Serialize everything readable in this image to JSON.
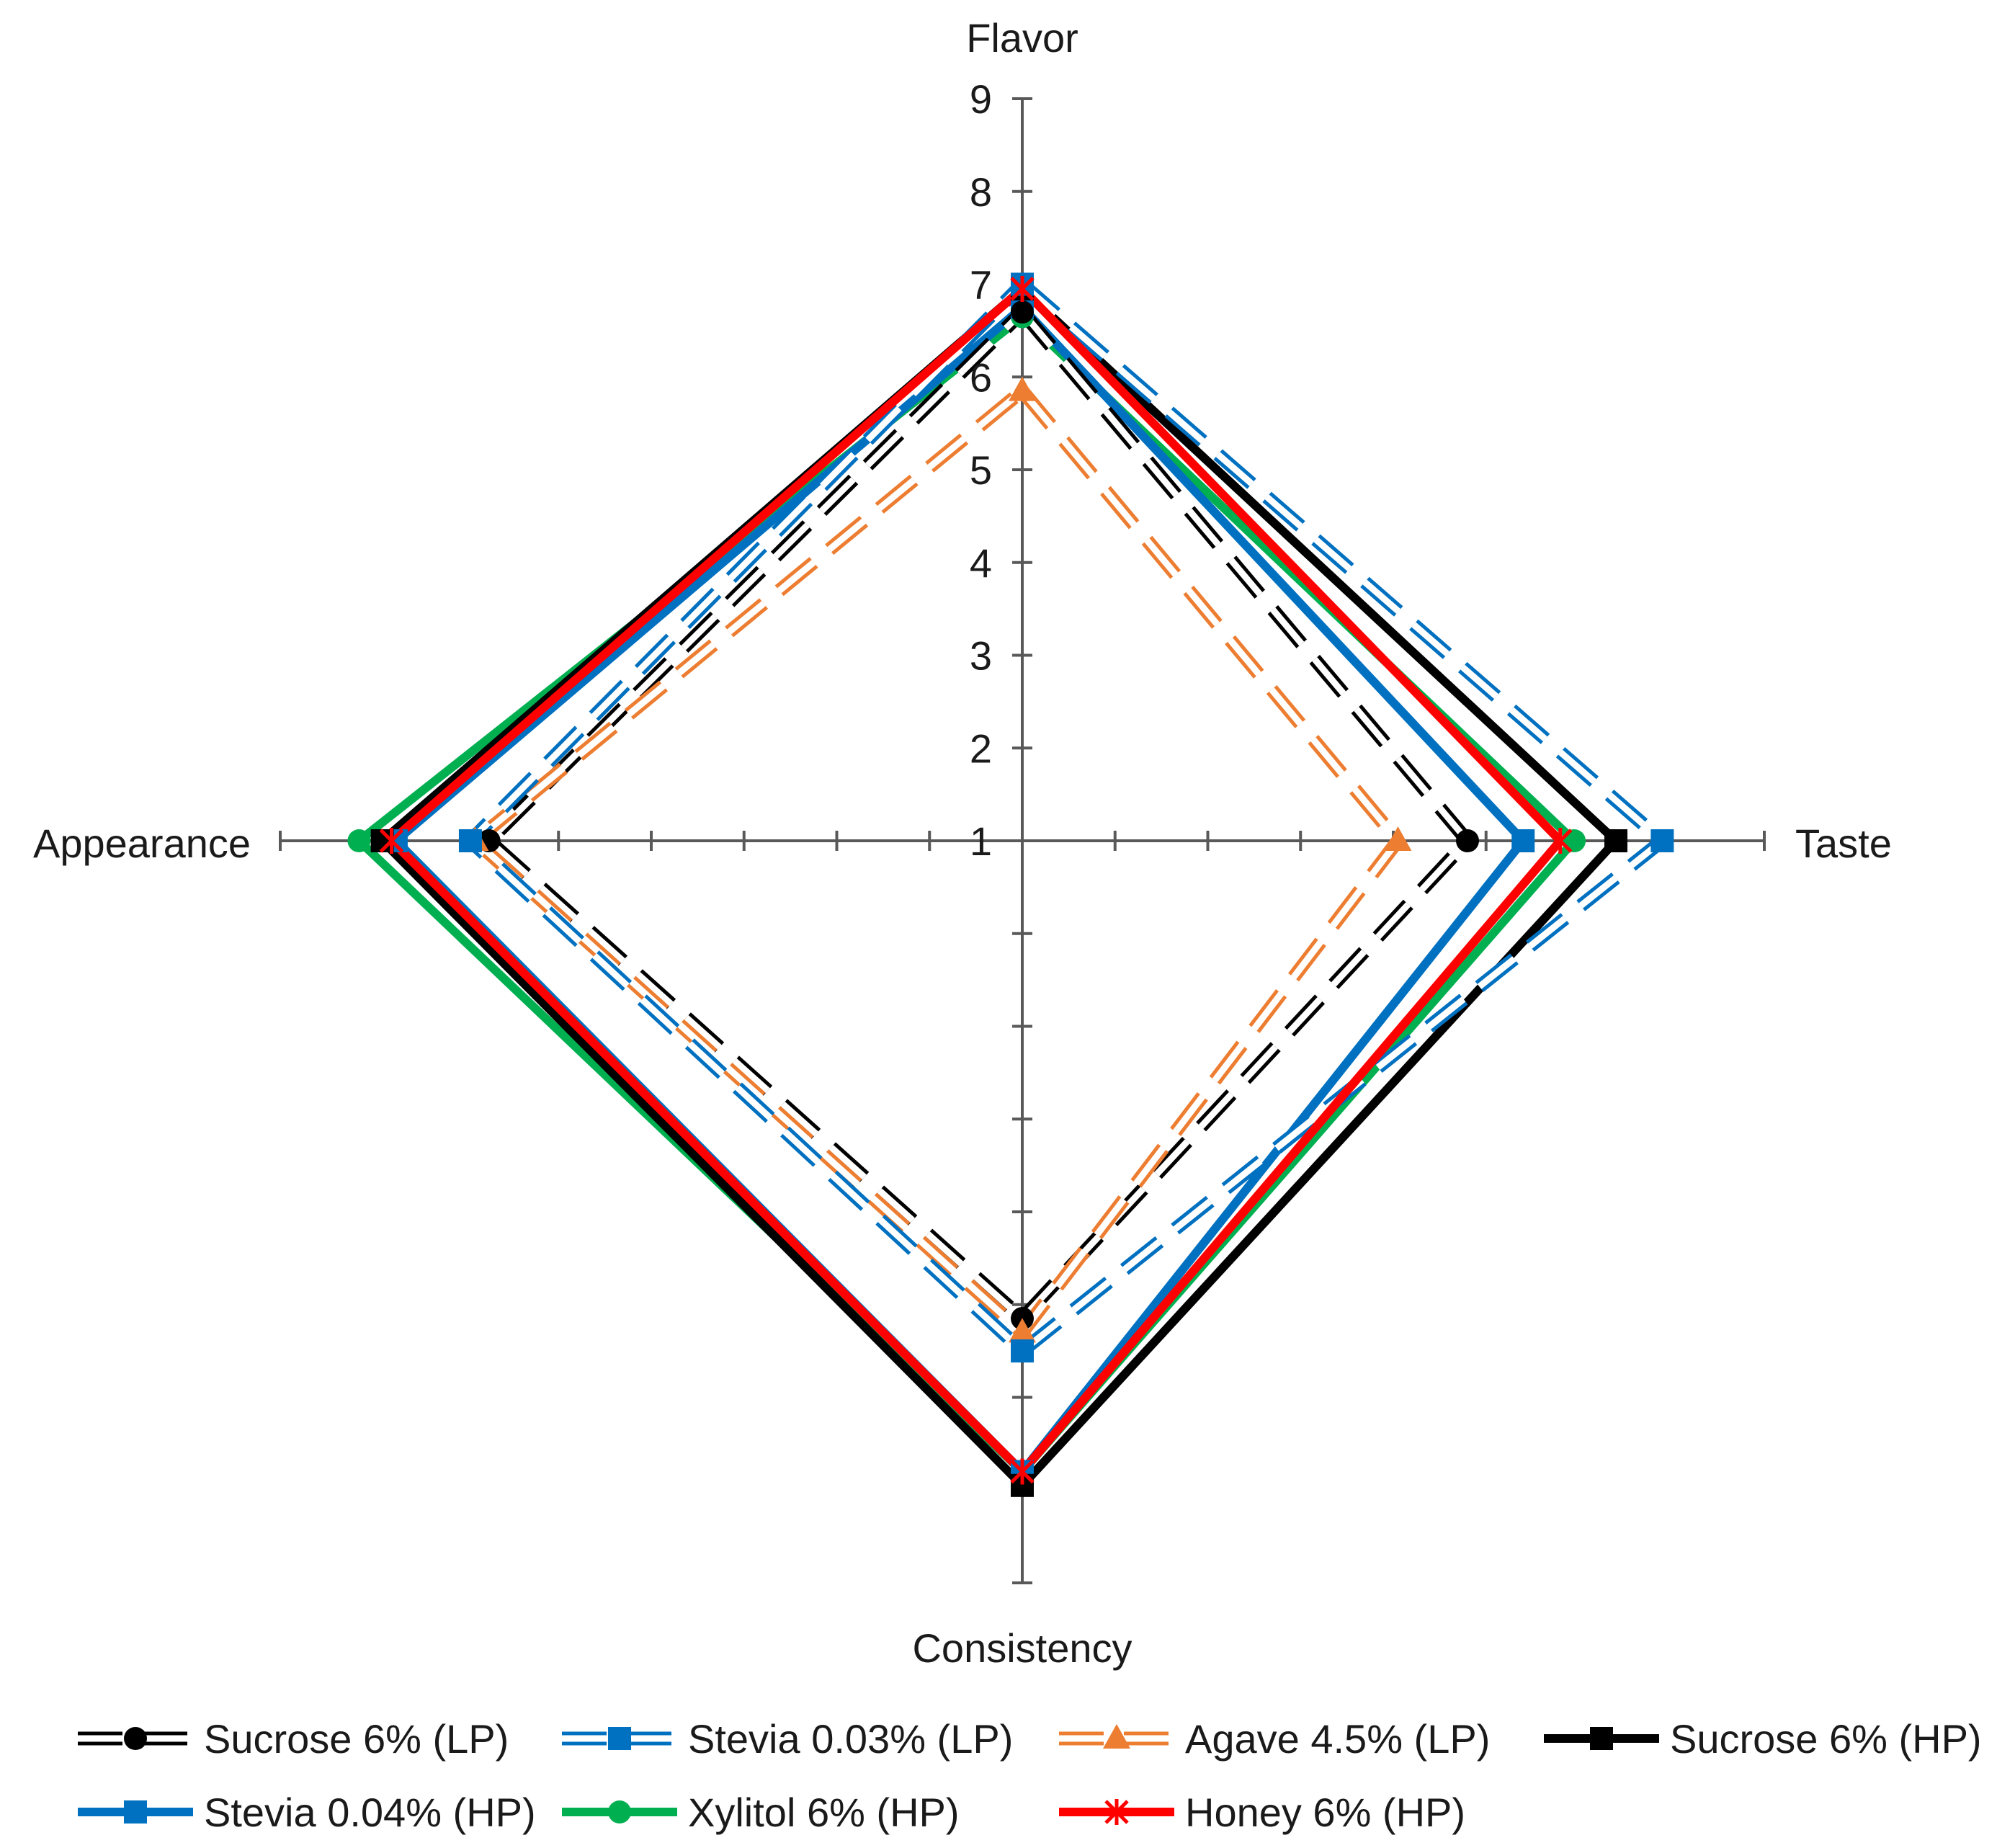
{
  "chart_data": {
    "type": "radar",
    "axes": [
      "Flavor",
      "Taste",
      "Consistency",
      "Appearance"
    ],
    "range": [
      1,
      9
    ],
    "ticks": [
      "1",
      "2",
      "3",
      "4",
      "5",
      "6",
      "7",
      "8",
      "9"
    ],
    "legend_position": "bottom",
    "series": [
      {
        "name": "Sucrose 6% (LP)",
        "values": [
          6.7,
          5.8,
          6.15,
          6.75
        ],
        "color": "#000000",
        "style": "double-dashed",
        "marker": "circle"
      },
      {
        "name": "Stevia 0.03% (LP)",
        "values": [
          7.0,
          7.9,
          6.5,
          6.95
        ],
        "color": "#0070c0",
        "style": "double-dashed",
        "marker": "square"
      },
      {
        "name": "Agave 4.5% (LP)",
        "values": [
          5.85,
          5.05,
          6.3,
          6.9
        ],
        "color": "#ed7d31",
        "style": "double-dashed",
        "marker": "triangle"
      },
      {
        "name": "Sucrose 6% (HP)",
        "values": [
          6.95,
          7.4,
          7.95,
          7.9
        ],
        "color": "#000000",
        "style": "solid",
        "marker": "square"
      },
      {
        "name": "Stevia 0.04% (HP)",
        "values": [
          6.75,
          6.4,
          7.8,
          7.75
        ],
        "color": "#0070c0",
        "style": "solid",
        "marker": "square"
      },
      {
        "name": "Xylitol 6% (HP)",
        "values": [
          6.65,
          6.95,
          7.8,
          8.15
        ],
        "color": "#00b050",
        "style": "solid",
        "marker": "circle"
      },
      {
        "name": "Honey 6% (HP)",
        "values": [
          6.95,
          6.8,
          7.8,
          7.8
        ],
        "color": "#ff0000",
        "style": "solid",
        "marker": "star"
      }
    ]
  }
}
